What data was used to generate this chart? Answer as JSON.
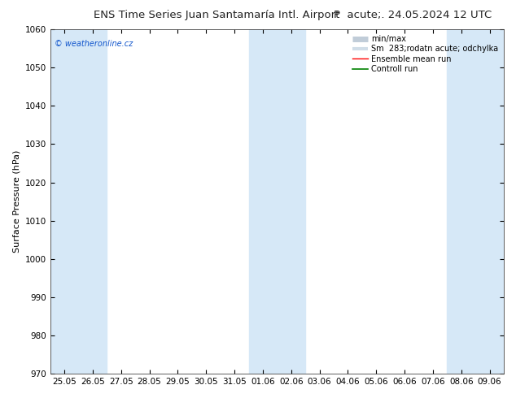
{
  "title_left": "ENS Time Series Juan Santamaría Intl. Airport",
  "title_right": "P  acute;. 24.05.2024 12 UTC",
  "ylabel": "Surface Pressure (hPa)",
  "ylim": [
    970,
    1060
  ],
  "yticks": [
    970,
    980,
    990,
    1000,
    1010,
    1020,
    1030,
    1040,
    1050,
    1060
  ],
  "xtick_labels": [
    "25.05",
    "26.05",
    "27.05",
    "28.05",
    "29.05",
    "30.05",
    "31.05",
    "01.06",
    "02.06",
    "03.06",
    "04.06",
    "05.06",
    "06.06",
    "07.06",
    "08.06",
    "09.06"
  ],
  "num_xticks": 16,
  "band_color": "#d6e8f7",
  "bg_color": "#ffffff",
  "watermark": "© weatheronline.cz",
  "title_fontsize": 9.5,
  "axis_label_fontsize": 8,
  "tick_fontsize": 7.5,
  "legend_fontsize": 7,
  "shaded_xranges": [
    [
      24.5,
      26.5
    ],
    [
      31.5,
      33.5
    ],
    [
      38.5,
      40.5
    ]
  ],
  "legend_min_max_color": "#c0ccd8",
  "legend_sm_color": "#d0dde8"
}
